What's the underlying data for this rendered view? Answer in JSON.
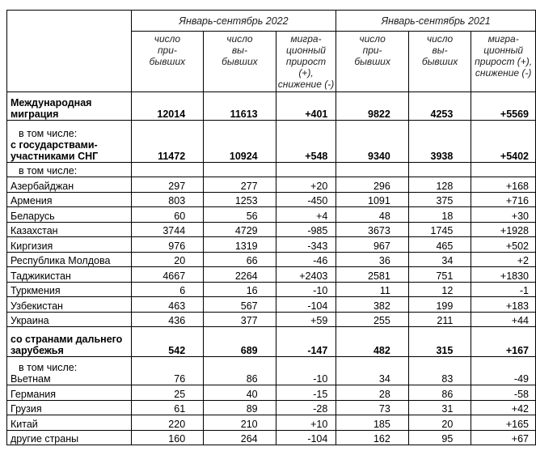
{
  "header": {
    "period_2022": "Январь-сентябрь 2022",
    "period_2021": "Январь-сентябрь 2021",
    "col_arrived": "число при-бывших",
    "col_departed": "число вы-бывших",
    "col_net": "мигра-ционный прирост (+), снижение (-)"
  },
  "total": {
    "label": "Международная миграция",
    "values": [
      "12014",
      "11613",
      "+401",
      "9822",
      "4253",
      "+5569"
    ]
  },
  "cis": {
    "note": "в том числе:",
    "label": "с государствами-участниками СНГ",
    "values": [
      "11472",
      "10924",
      "+548",
      "9340",
      "3938",
      "+5402"
    ]
  },
  "cis_note": "в том числе:",
  "cis_rows": [
    {
      "label": "Азербайджан",
      "values": [
        "297",
        "277",
        "+20",
        "296",
        "128",
        "+168"
      ]
    },
    {
      "label": "Армения",
      "values": [
        "803",
        "1253",
        "-450",
        "1091",
        "375",
        "+716"
      ]
    },
    {
      "label": "Беларусь",
      "values": [
        "60",
        "56",
        "+4",
        "48",
        "18",
        "+30"
      ]
    },
    {
      "label": "Казахстан",
      "values": [
        "3744",
        "4729",
        "-985",
        "3673",
        "1745",
        "+1928"
      ]
    },
    {
      "label": "Киргизия",
      "values": [
        "976",
        "1319",
        "-343",
        "967",
        "465",
        "+502"
      ]
    },
    {
      "label": "Республика Молдова",
      "values": [
        "20",
        "66",
        "-46",
        "36",
        "34",
        "+2"
      ]
    },
    {
      "label": "Таджикистан",
      "values": [
        "4667",
        "2264",
        "+2403",
        "2581",
        "751",
        "+1830"
      ]
    },
    {
      "label": "Туркмения",
      "values": [
        "6",
        "16",
        "-10",
        "11",
        "12",
        "-1"
      ]
    },
    {
      "label": "Узбекистан",
      "values": [
        "463",
        "567",
        "-104",
        "382",
        "199",
        "+183"
      ]
    },
    {
      "label": "Украина",
      "values": [
        "436",
        "377",
        "+59",
        "255",
        "211",
        "+44"
      ]
    }
  ],
  "far": {
    "label": "со странами дальнего зарубежья",
    "values": [
      "542",
      "689",
      "-147",
      "482",
      "315",
      "+167"
    ]
  },
  "far_note": "в том числе:",
  "far_rows": [
    {
      "label": "Вьетнам",
      "values": [
        "76",
        "86",
        "-10",
        "34",
        "83",
        "-49"
      ]
    },
    {
      "label": "Германия",
      "values": [
        "25",
        "40",
        "-15",
        "28",
        "86",
        "-58"
      ]
    },
    {
      "label": "Грузия",
      "values": [
        "61",
        "89",
        "-28",
        "73",
        "31",
        "+42"
      ]
    },
    {
      "label": "Китай",
      "values": [
        "220",
        "210",
        "+10",
        "185",
        "20",
        "+165"
      ]
    },
    {
      "label": "другие страны",
      "values": [
        "160",
        "264",
        "-104",
        "162",
        "95",
        "+67"
      ]
    }
  ]
}
